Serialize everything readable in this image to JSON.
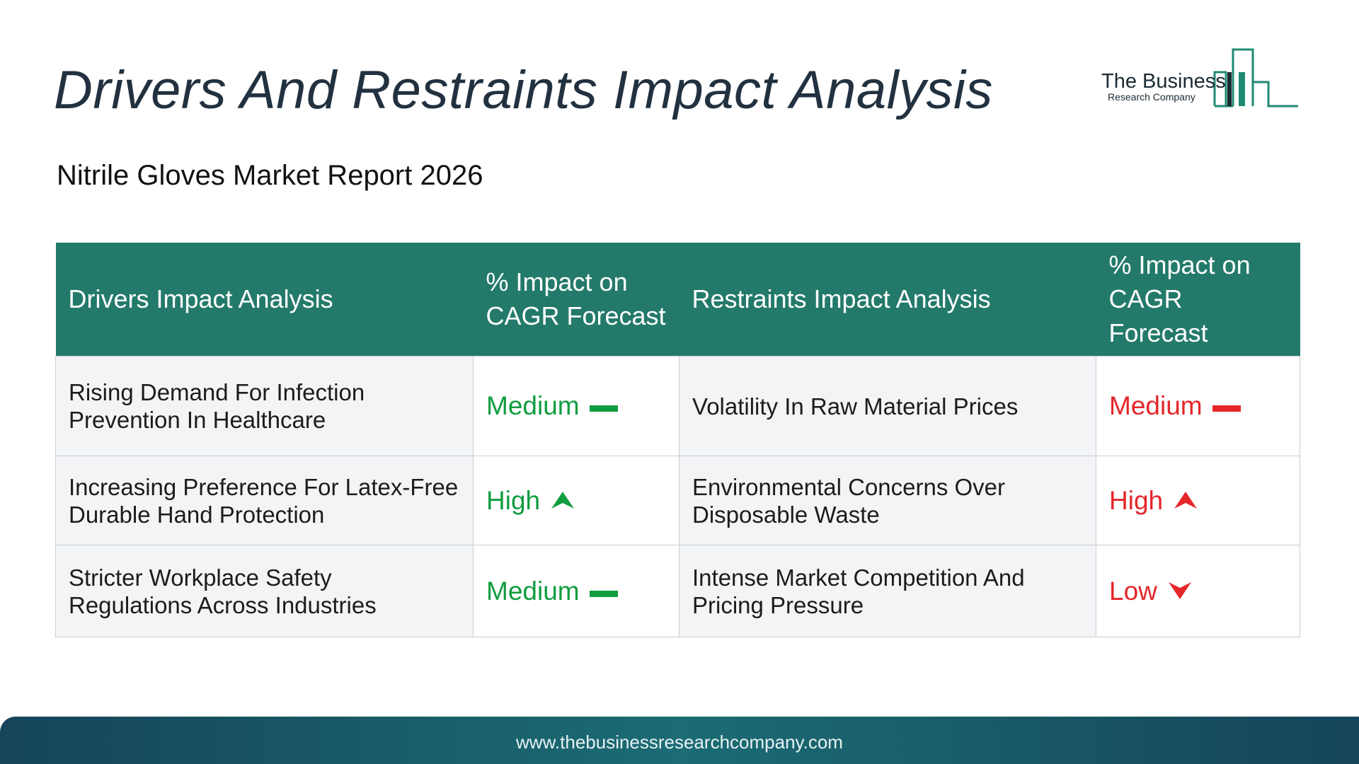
{
  "header": {
    "title": "Drivers And Restraints Impact Analysis",
    "subtitle": "Nitrile Gloves Market Report 2026"
  },
  "logo": {
    "line1": "The Business",
    "line2": "Research Company",
    "color": "#1f8a72"
  },
  "table": {
    "columns": [
      "Drivers Impact Analysis",
      "% Impact on CAGR Forecast",
      "Restraints Impact Analysis",
      "% Impact on CAGR Forecast"
    ],
    "header_color": "#247a6a",
    "rows": [
      {
        "driver": "Rising Demand For Infection Prevention In Healthcare",
        "driver_impact": "Medium",
        "driver_icon": "dash-icon",
        "restraint": "Volatility In Raw Material Prices",
        "restraint_impact": "Medium",
        "restraint_icon": "dash-icon"
      },
      {
        "driver": "Increasing Preference For Latex-Free Durable Hand Protection",
        "driver_impact": "High",
        "driver_icon": "arrow-up-icon",
        "restraint": "Environmental Concerns Over Disposable Waste",
        "restraint_impact": "High",
        "restraint_icon": "arrow-up-icon"
      },
      {
        "driver": "Stricter Workplace Safety Regulations Across Industries",
        "driver_impact": "Medium",
        "driver_icon": "dash-icon",
        "restraint": "Intense Market Competition And Pricing Pressure",
        "restraint_impact": "Low",
        "restraint_icon": "arrow-down-icon"
      }
    ],
    "driver_color": "#0f9d3f",
    "restraint_color": "#e5262b"
  },
  "footer": {
    "url": "www.thebusinessresearchcompany.com"
  }
}
